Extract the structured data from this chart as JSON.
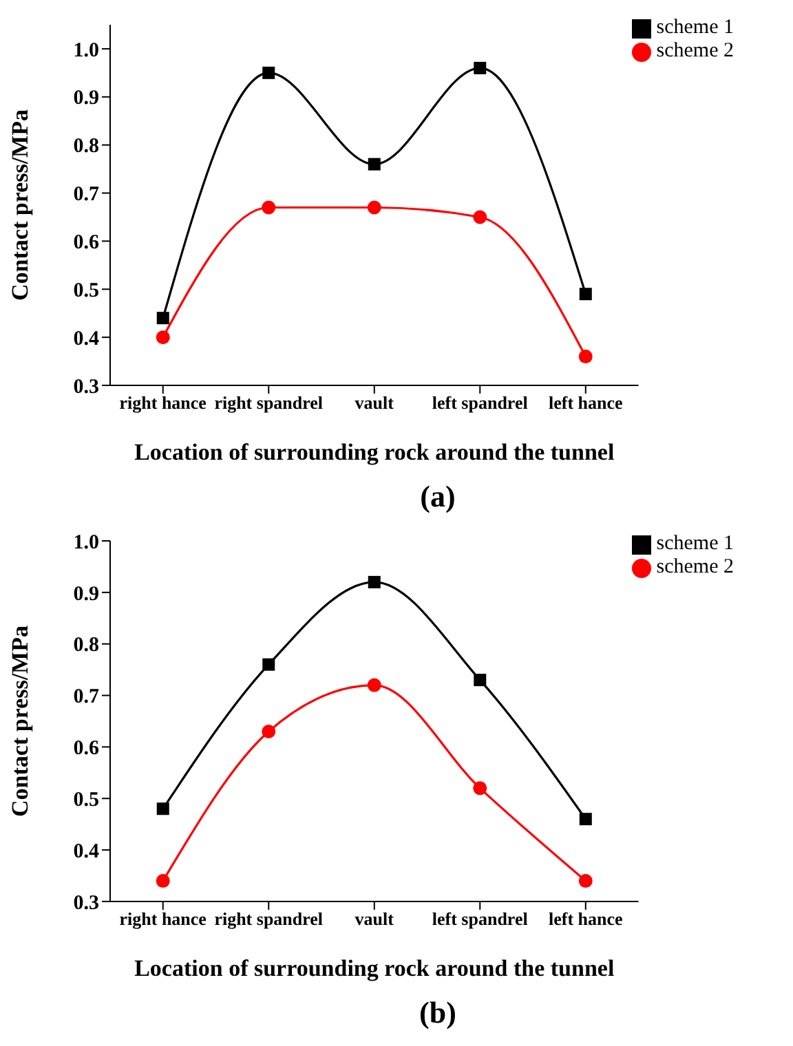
{
  "chart_data": [
    {
      "type": "line",
      "xlabel": "Location of surrounding rock around the tunnel",
      "ylabel": "Contact press/MPa",
      "annotations": [
        "(a)"
      ],
      "categories": [
        "right hance",
        "right spandrel",
        "vault",
        "left spandrel",
        "left hance"
      ],
      "series": [
        {
          "name": "scheme 1",
          "color": "#000000",
          "marker": "square",
          "values": [
            0.44,
            0.95,
            0.76,
            0.96,
            0.49
          ]
        },
        {
          "name": "scheme 2",
          "color": "#ff0000",
          "marker": "circle",
          "values": [
            0.4,
            0.67,
            0.67,
            0.65,
            0.36
          ]
        }
      ],
      "ylim": [
        0.3,
        1.05
      ],
      "yticks": [
        0.3,
        0.4,
        0.5,
        0.6,
        0.7,
        0.8,
        0.9,
        {
          "value": 1,
          "label": "1.0"
        }
      ],
      "grid": false,
      "legend": "top right"
    },
    {
      "type": "line",
      "xlabel": "Location of surrounding rock around the tunnel",
      "ylabel": "Contact press/MPa",
      "annotations": [
        "(b)"
      ],
      "categories": [
        "right hance",
        "right spandrel",
        "vault",
        "left spandrel",
        "left hance"
      ],
      "series": [
        {
          "name": "scheme 1",
          "color": "#000000",
          "marker": "square",
          "values": [
            0.48,
            0.76,
            0.92,
            0.73,
            0.46
          ]
        },
        {
          "name": "scheme 2",
          "color": "#ff0000",
          "marker": "circle",
          "values": [
            0.34,
            0.63,
            0.72,
            0.52,
            0.34
          ]
        }
      ],
      "ylim": [
        0.3,
        1.0
      ],
      "yticks": [
        0.3,
        0.4,
        0.5,
        0.6,
        0.7,
        0.8,
        0.9,
        {
          "value": 1,
          "label": "1.0"
        }
      ],
      "grid": false,
      "legend": "top right"
    }
  ]
}
